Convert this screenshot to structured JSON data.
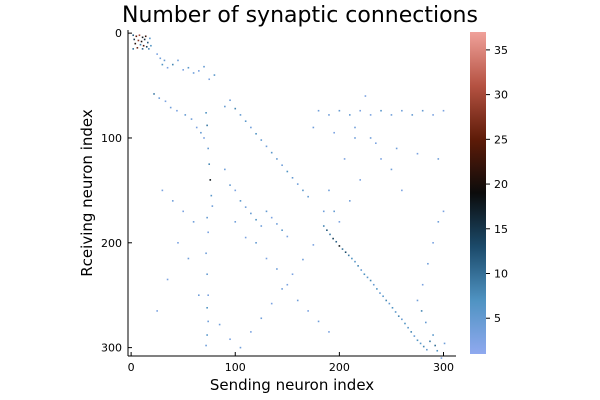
{
  "chart_data": {
    "type": "heatmap",
    "title": "Number of synaptic connections",
    "xlabel": "Sending neuron index",
    "ylabel": "Rceiving neuron index",
    "xlim": [
      -3,
      312
    ],
    "ylim": [
      -3,
      308
    ],
    "y_reversed": true,
    "x_ticks": [
      0,
      100,
      200,
      300
    ],
    "y_ticks": [
      0,
      100,
      200,
      300
    ],
    "colorbar": {
      "range": [
        1,
        37
      ],
      "ticks": [
        5,
        10,
        15,
        20,
        25,
        30,
        35
      ],
      "colormap": [
        "#8fa9ef",
        "#4f93c2",
        "#1b4a6a",
        "#0b0b0b",
        "#5e1b08",
        "#b55242",
        "#f0a19a"
      ]
    },
    "background_color": "#ffffff",
    "grid": false,
    "cells": [
      [
        2,
        2,
        12
      ],
      [
        5,
        3,
        25
      ],
      [
        8,
        2,
        30
      ],
      [
        11,
        4,
        18
      ],
      [
        14,
        3,
        22
      ],
      [
        3,
        6,
        15
      ],
      [
        7,
        7,
        28
      ],
      [
        10,
        8,
        20
      ],
      [
        13,
        6,
        16
      ],
      [
        16,
        9,
        12
      ],
      [
        4,
        10,
        21
      ],
      [
        9,
        11,
        9
      ],
      [
        12,
        12,
        24
      ],
      [
        15,
        13,
        14
      ],
      [
        6,
        14,
        26
      ],
      [
        11,
        15,
        11
      ],
      [
        17,
        15,
        8
      ],
      [
        2,
        15,
        10
      ],
      [
        18,
        5,
        6
      ],
      [
        19,
        12,
        7
      ],
      [
        25,
        20,
        3
      ],
      [
        28,
        24,
        4
      ],
      [
        32,
        26,
        5
      ],
      [
        30,
        30,
        7
      ],
      [
        35,
        33,
        3
      ],
      [
        40,
        30,
        8
      ],
      [
        45,
        26,
        4
      ],
      [
        50,
        35,
        3
      ],
      [
        55,
        33,
        6
      ],
      [
        60,
        38,
        4
      ],
      [
        65,
        36,
        3
      ],
      [
        70,
        32,
        5
      ],
      [
        75,
        44,
        3
      ],
      [
        80,
        40,
        6
      ],
      [
        22,
        58,
        9
      ],
      [
        27,
        62,
        4
      ],
      [
        33,
        65,
        3
      ],
      [
        38,
        71,
        4
      ],
      [
        44,
        74,
        3
      ],
      [
        52,
        78,
        5
      ],
      [
        58,
        82,
        4
      ],
      [
        63,
        90,
        3
      ],
      [
        67,
        95,
        5
      ],
      [
        70,
        100,
        3
      ],
      [
        72,
        76,
        7
      ],
      [
        73,
        88,
        9
      ],
      [
        74,
        110,
        5
      ],
      [
        75,
        125,
        8
      ],
      [
        76,
        140,
        18
      ],
      [
        77,
        155,
        6
      ],
      [
        78,
        165,
        4
      ],
      [
        73,
        176,
        5
      ],
      [
        74,
        190,
        3
      ],
      [
        72,
        210,
        4
      ],
      [
        73,
        230,
        5
      ],
      [
        74,
        250,
        3
      ],
      [
        73,
        262,
        7
      ],
      [
        74,
        275,
        4
      ],
      [
        73,
        288,
        6
      ],
      [
        72,
        298,
        4
      ],
      [
        90,
        70,
        5
      ],
      [
        95,
        64,
        4
      ],
      [
        100,
        72,
        8
      ],
      [
        105,
        78,
        5
      ],
      [
        110,
        84,
        6
      ],
      [
        115,
        90,
        4
      ],
      [
        120,
        96,
        7
      ],
      [
        125,
        102,
        5
      ],
      [
        130,
        108,
        4
      ],
      [
        135,
        114,
        6
      ],
      [
        140,
        120,
        5
      ],
      [
        145,
        126,
        4
      ],
      [
        150,
        132,
        7
      ],
      [
        155,
        138,
        5
      ],
      [
        160,
        144,
        4
      ],
      [
        165,
        150,
        6
      ],
      [
        170,
        156,
        5
      ],
      [
        90,
        130,
        4
      ],
      [
        95,
        145,
        5
      ],
      [
        100,
        150,
        3
      ],
      [
        105,
        160,
        6
      ],
      [
        110,
        166,
        4
      ],
      [
        115,
        172,
        5
      ],
      [
        120,
        178,
        7
      ],
      [
        125,
        184,
        4
      ],
      [
        130,
        170,
        5
      ],
      [
        135,
        176,
        3
      ],
      [
        140,
        182,
        4
      ],
      [
        145,
        188,
        6
      ],
      [
        150,
        194,
        3
      ],
      [
        100,
        180,
        4
      ],
      [
        110,
        195,
        3
      ],
      [
        120,
        200,
        5
      ],
      [
        130,
        215,
        3
      ],
      [
        140,
        225,
        4
      ],
      [
        150,
        240,
        3
      ],
      [
        160,
        255,
        4
      ],
      [
        170,
        265,
        3
      ],
      [
        180,
        275,
        4
      ],
      [
        190,
        285,
        3
      ],
      [
        185,
        184,
        8
      ],
      [
        188,
        188,
        12
      ],
      [
        191,
        192,
        9
      ],
      [
        194,
        196,
        14
      ],
      [
        197,
        199,
        11
      ],
      [
        200,
        203,
        18
      ],
      [
        203,
        206,
        10
      ],
      [
        206,
        209,
        13
      ],
      [
        209,
        212,
        9
      ],
      [
        212,
        215,
        7
      ],
      [
        215,
        218,
        6
      ],
      [
        218,
        222,
        8
      ],
      [
        221,
        226,
        5
      ],
      [
        224,
        230,
        7
      ],
      [
        227,
        233,
        6
      ],
      [
        230,
        236,
        8
      ],
      [
        233,
        240,
        5
      ],
      [
        236,
        244,
        7
      ],
      [
        239,
        248,
        5
      ],
      [
        242,
        251,
        6
      ],
      [
        245,
        255,
        8
      ],
      [
        248,
        258,
        5
      ],
      [
        251,
        262,
        7
      ],
      [
        254,
        266,
        6
      ],
      [
        257,
        270,
        8
      ],
      [
        260,
        273,
        5
      ],
      [
        263,
        277,
        7
      ],
      [
        266,
        281,
        6
      ],
      [
        269,
        285,
        8
      ],
      [
        272,
        289,
        5
      ],
      [
        275,
        293,
        7
      ],
      [
        278,
        296,
        6
      ],
      [
        281,
        299,
        8
      ],
      [
        284,
        302,
        5
      ],
      [
        287,
        294,
        9
      ],
      [
        290,
        288,
        6
      ],
      [
        292,
        298,
        10
      ],
      [
        294,
        303,
        7
      ],
      [
        279,
        265,
        8
      ],
      [
        283,
        276,
        5
      ],
      [
        180,
        74,
        4
      ],
      [
        200,
        74,
        5
      ],
      [
        220,
        74,
        3
      ],
      [
        240,
        74,
        6
      ],
      [
        260,
        74,
        4
      ],
      [
        280,
        74,
        5
      ],
      [
        300,
        74,
        3
      ],
      [
        190,
        78,
        4
      ],
      [
        210,
        78,
        5
      ],
      [
        230,
        78,
        3
      ],
      [
        250,
        78,
        4
      ],
      [
        270,
        78,
        5
      ],
      [
        290,
        78,
        3
      ],
      [
        175,
        90,
        4
      ],
      [
        195,
        95,
        3
      ],
      [
        215,
        100,
        4
      ],
      [
        235,
        105,
        3
      ],
      [
        255,
        110,
        4
      ],
      [
        275,
        115,
        3
      ],
      [
        295,
        120,
        4
      ],
      [
        30,
        150,
        3
      ],
      [
        40,
        160,
        4
      ],
      [
        50,
        170,
        3
      ],
      [
        60,
        180,
        4
      ],
      [
        45,
        200,
        3
      ],
      [
        55,
        215,
        4
      ],
      [
        35,
        235,
        3
      ],
      [
        65,
        250,
        4
      ],
      [
        25,
        265,
        3
      ],
      [
        85,
        278,
        4
      ],
      [
        95,
        292,
        3
      ],
      [
        105,
        300,
        4
      ],
      [
        115,
        285,
        3
      ],
      [
        125,
        272,
        4
      ],
      [
        135,
        258,
        3
      ],
      [
        145,
        244,
        4
      ],
      [
        155,
        230,
        3
      ],
      [
        165,
        216,
        4
      ],
      [
        175,
        202,
        3
      ],
      [
        185,
        170,
        4
      ],
      [
        300,
        170,
        3
      ],
      [
        295,
        180,
        4
      ],
      [
        290,
        200,
        3
      ],
      [
        285,
        220,
        4
      ],
      [
        280,
        240,
        3
      ],
      [
        275,
        255,
        4
      ],
      [
        298,
        310,
        3
      ],
      [
        301,
        296,
        4
      ],
      [
        260,
        150,
        3
      ],
      [
        250,
        130,
        4
      ],
      [
        240,
        120,
        3
      ],
      [
        230,
        100,
        4
      ],
      [
        220,
        140,
        3
      ],
      [
        210,
        160,
        4
      ],
      [
        200,
        180,
        3
      ],
      [
        195,
        170,
        5
      ],
      [
        190,
        150,
        4
      ],
      [
        205,
        120,
        3
      ],
      [
        215,
        90,
        4
      ],
      [
        225,
        60,
        3
      ]
    ]
  }
}
